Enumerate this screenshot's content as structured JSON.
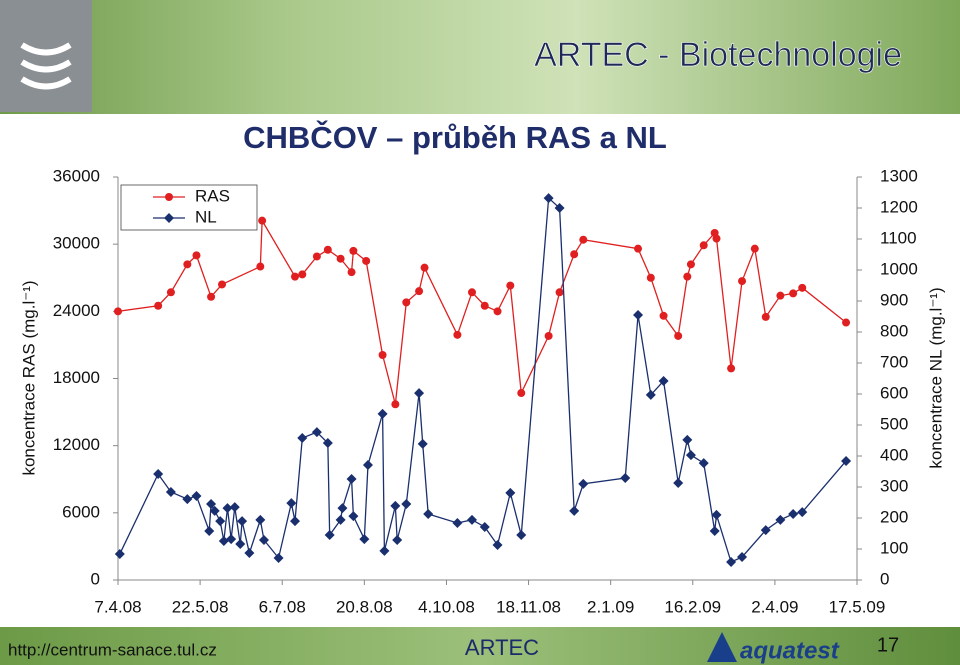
{
  "header": {
    "title": "ARTEC - Biotechnologie"
  },
  "footer": {
    "url": "http://centrum-sanace.tul.cz",
    "center": "ARTEC",
    "logo": "aquatest",
    "page": "17"
  },
  "chart_data": {
    "type": "line",
    "title": "CHBČOV – průběh RAS a NL",
    "y_label": "koncentrace RAS (mg.l⁻¹)",
    "y2_label": "koncentrace NL (mg.l⁻¹)",
    "xlim": [
      "2008-04-07",
      "2009-05-17"
    ],
    "xticks": [
      {
        "value": "2008-04-07",
        "label": "7.4.08"
      },
      {
        "value": "2008-05-22",
        "label": "22.5.08"
      },
      {
        "value": "2008-07-06",
        "label": "6.7.08"
      },
      {
        "value": "2008-08-20",
        "label": "20.8.08"
      },
      {
        "value": "2008-10-04",
        "label": "4.10.08"
      },
      {
        "value": "2008-11-18",
        "label": "18.11.08"
      },
      {
        "value": "2009-01-02",
        "label": "2.1.09"
      },
      {
        "value": "2009-02-16",
        "label": "16.2.09"
      },
      {
        "value": "2009-04-02",
        "label": "2.4.09"
      },
      {
        "value": "2009-05-17",
        "label": "17.5.09"
      }
    ],
    "ylim": [
      0,
      36000
    ],
    "yticks": [
      0,
      6000,
      12000,
      18000,
      24000,
      30000,
      36000
    ],
    "y2lim": [
      0,
      1300
    ],
    "y2ticks": [
      0,
      100,
      200,
      300,
      400,
      500,
      600,
      700,
      800,
      900,
      1000,
      1100,
      1200,
      1300
    ],
    "legend": "top-left",
    "series": [
      {
        "name": "RAS",
        "color": "#e02020",
        "marker": "circle",
        "x": [
          "2008-04-07",
          "2008-04-29",
          "2008-05-06",
          "2008-05-15",
          "2008-05-20",
          "2008-05-28",
          "2008-06-03",
          "2008-06-24",
          "2008-06-25",
          "2008-07-13",
          "2008-07-17",
          "2008-07-25",
          "2008-07-31",
          "2008-08-07",
          "2008-08-13",
          "2008-08-14",
          "2008-08-21",
          "2008-08-30",
          "2008-09-06",
          "2008-09-12",
          "2008-09-19",
          "2008-09-22",
          "2008-10-10",
          "2008-10-18",
          "2008-10-25",
          "2008-11-01",
          "2008-11-08",
          "2008-11-14",
          "2008-11-29",
          "2008-12-05",
          "2008-12-13",
          "2008-12-18",
          "2009-01-17",
          "2009-01-24",
          "2009-01-31",
          "2009-02-08",
          "2009-02-13",
          "2009-02-15",
          "2009-02-22",
          "2009-02-28",
          "2009-03-01",
          "2009-03-09",
          "2009-03-15",
          "2009-03-22",
          "2009-03-28",
          "2009-04-05",
          "2009-04-12",
          "2009-04-17",
          "2009-05-11"
        ],
        "values": [
          24000,
          24500,
          25700,
          28200,
          29000,
          25300,
          26400,
          28000,
          32100,
          27100,
          27300,
          28900,
          29500,
          28700,
          27500,
          29400,
          28500,
          20100,
          15700,
          24800,
          25800,
          27900,
          21900,
          25700,
          24500,
          24000,
          26300,
          16700,
          21800,
          25700,
          29100,
          30400,
          29600,
          27000,
          23600,
          21800,
          27100,
          28200,
          29900,
          31000,
          30500,
          18900,
          26700,
          29600,
          23500,
          25400,
          25600,
          26100,
          23000
        ]
      },
      {
        "name": "NL",
        "color": "#1a2f6e",
        "marker": "diamond",
        "axis": "y2",
        "x": [
          "2008-04-08",
          "2008-04-29",
          "2008-05-06",
          "2008-05-15",
          "2008-05-20",
          "2008-05-27",
          "2008-05-28",
          "2008-05-30",
          "2008-06-02",
          "2008-06-04",
          "2008-06-06",
          "2008-06-08",
          "2008-06-10",
          "2008-06-13",
          "2008-06-14",
          "2008-06-18",
          "2008-06-24",
          "2008-06-26",
          "2008-07-04",
          "2008-07-11",
          "2008-07-13",
          "2008-07-17",
          "2008-07-25",
          "2008-07-31",
          "2008-08-01",
          "2008-08-07",
          "2008-08-08",
          "2008-08-13",
          "2008-08-14",
          "2008-08-20",
          "2008-08-22",
          "2008-08-30",
          "2008-08-31",
          "2008-09-06",
          "2008-09-07",
          "2008-09-12",
          "2008-09-19",
          "2008-09-21",
          "2008-09-24",
          "2008-10-10",
          "2008-10-18",
          "2008-10-25",
          "2008-11-01",
          "2008-11-08",
          "2008-11-14",
          "2008-11-29",
          "2008-12-05",
          "2008-12-13",
          "2008-12-18",
          "2009-01-10",
          "2009-01-17",
          "2009-01-24",
          "2009-01-31",
          "2009-02-08",
          "2009-02-13",
          "2009-02-15",
          "2009-02-22",
          "2009-02-28",
          "2009-03-01",
          "2009-03-09",
          "2009-03-15",
          "2009-03-28",
          "2009-04-05",
          "2009-04-12",
          "2009-04-17",
          "2009-05-11"
        ],
        "values": [
          84,
          342,
          284,
          261,
          271,
          158,
          245,
          223,
          190,
          126,
          232,
          132,
          235,
          116,
          190,
          87,
          194,
          129,
          71,
          248,
          190,
          458,
          477,
          442,
          145,
          194,
          232,
          326,
          206,
          132,
          371,
          536,
          94,
          239,
          129,
          245,
          603,
          439,
          213,
          184,
          194,
          171,
          113,
          281,
          145,
          1232,
          1200,
          223,
          310,
          329,
          855,
          597,
          642,
          313,
          452,
          403,
          377,
          158,
          210,
          58,
          74,
          161,
          194,
          213,
          219,
          384
        ]
      }
    ]
  }
}
